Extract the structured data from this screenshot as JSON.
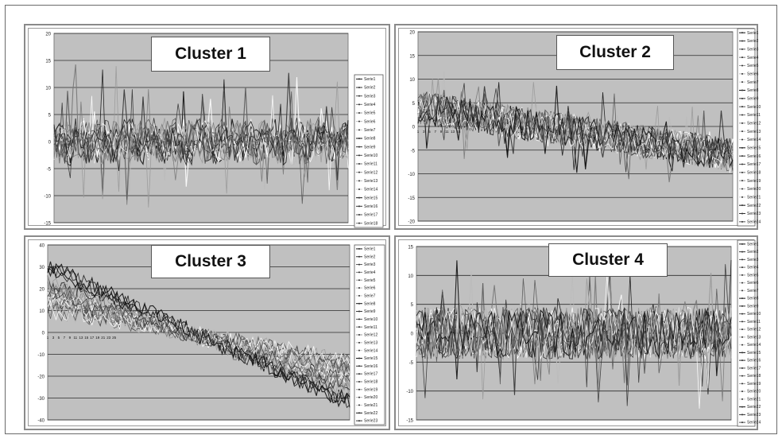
{
  "chart_data": [
    {
      "type": "line",
      "title": "Cluster 1",
      "ylim": [
        -15,
        20
      ],
      "yticks": [
        -15,
        -10,
        -5,
        0,
        5,
        10,
        15,
        20
      ],
      "grid": true,
      "legend_position": "right",
      "colors": [
        "#111111",
        "#333333",
        "#555555",
        "#777777",
        "#999999",
        "#bbbbbb",
        "#ffffff"
      ],
      "num_points": 110,
      "series": [
        {
          "name": "Serie1"
        },
        {
          "name": "Serie2"
        },
        {
          "name": "Serie3"
        },
        {
          "name": "Serie4"
        },
        {
          "name": "Serie5"
        },
        {
          "name": "Serie6"
        },
        {
          "name": "Serie7"
        },
        {
          "name": "Serie8"
        },
        {
          "name": "Serie9"
        },
        {
          "name": "Serie10"
        },
        {
          "name": "Serie11"
        },
        {
          "name": "Serie12"
        },
        {
          "name": "Serie13"
        },
        {
          "name": "Serie14"
        },
        {
          "name": "Serie15"
        },
        {
          "name": "Serie16"
        },
        {
          "name": "Serie17"
        },
        {
          "name": "Serie18"
        }
      ]
    },
    {
      "type": "line",
      "title": "Cluster 2",
      "ylim": [
        -20,
        20
      ],
      "yticks": [
        -20,
        -15,
        -10,
        -5,
        0,
        5,
        10,
        15,
        20
      ],
      "grid": true,
      "legend_position": "right",
      "colors": [
        "#111111",
        "#333333",
        "#555555",
        "#777777",
        "#999999",
        "#bbbbbb",
        "#ffffff"
      ],
      "num_points": 110,
      "x_ticks_visible": [
        "1",
        "3",
        "5",
        "7",
        "9",
        "11",
        "13",
        "15"
      ],
      "series": [
        {
          "name": "Serie1"
        },
        {
          "name": "Serie2"
        },
        {
          "name": "Serie3"
        },
        {
          "name": "Serie4"
        },
        {
          "name": "Serie5"
        },
        {
          "name": "Serie6"
        },
        {
          "name": "Serie7"
        },
        {
          "name": "Serie8"
        },
        {
          "name": "Serie9"
        },
        {
          "name": "Serie10"
        },
        {
          "name": "Serie11"
        },
        {
          "name": "Serie12"
        },
        {
          "name": "Serie13"
        },
        {
          "name": "Serie14"
        },
        {
          "name": "Serie15"
        },
        {
          "name": "Serie16"
        },
        {
          "name": "Serie17"
        },
        {
          "name": "Serie18"
        },
        {
          "name": "Serie19"
        },
        {
          "name": "Serie20"
        },
        {
          "name": "Serie21"
        },
        {
          "name": "Serie22"
        },
        {
          "name": "Serie23"
        },
        {
          "name": "Serie24"
        }
      ]
    },
    {
      "type": "line",
      "title": "Cluster 3",
      "ylim": [
        -40,
        40
      ],
      "yticks": [
        -40,
        -30,
        -20,
        -10,
        0,
        10,
        20,
        30,
        40
      ],
      "grid": true,
      "legend_position": "right",
      "colors": [
        "#111111",
        "#333333",
        "#555555",
        "#777777",
        "#999999",
        "#bbbbbb",
        "#ffffff"
      ],
      "num_points": 110,
      "x_ticks_visible": [
        "1",
        "3",
        "5",
        "7",
        "9",
        "11",
        "13",
        "15",
        "17",
        "19",
        "21",
        "23",
        "25"
      ],
      "series": [
        {
          "name": "Serie1"
        },
        {
          "name": "Serie2"
        },
        {
          "name": "Serie3"
        },
        {
          "name": "Serie4"
        },
        {
          "name": "Serie5"
        },
        {
          "name": "Serie6"
        },
        {
          "name": "Serie7"
        },
        {
          "name": "Serie8"
        },
        {
          "name": "Serie9"
        },
        {
          "name": "Serie10"
        },
        {
          "name": "Serie11"
        },
        {
          "name": "Serie12"
        },
        {
          "name": "Serie13"
        },
        {
          "name": "Serie14"
        },
        {
          "name": "Serie15"
        },
        {
          "name": "Serie16"
        },
        {
          "name": "Serie17"
        },
        {
          "name": "Serie18"
        },
        {
          "name": "Serie19"
        },
        {
          "name": "Serie20"
        },
        {
          "name": "Serie21"
        },
        {
          "name": "Serie22"
        },
        {
          "name": "Serie23"
        }
      ]
    },
    {
      "type": "line",
      "title": "Cluster 4",
      "ylim": [
        -15,
        15
      ],
      "yticks": [
        -15,
        -10,
        -5,
        0,
        5,
        10,
        15
      ],
      "grid": true,
      "legend_position": "right",
      "colors": [
        "#111111",
        "#333333",
        "#555555",
        "#777777",
        "#999999",
        "#bbbbbb",
        "#ffffff"
      ],
      "num_points": 110,
      "series": [
        {
          "name": "Serie1"
        },
        {
          "name": "Serie2"
        },
        {
          "name": "Serie3"
        },
        {
          "name": "Serie4"
        },
        {
          "name": "Serie5"
        },
        {
          "name": "Serie6"
        },
        {
          "name": "Serie7"
        },
        {
          "name": "Serie8"
        },
        {
          "name": "Serie9"
        },
        {
          "name": "Serie10"
        },
        {
          "name": "Serie11"
        },
        {
          "name": "Serie12"
        },
        {
          "name": "Serie13"
        },
        {
          "name": "Serie14"
        },
        {
          "name": "Serie15"
        },
        {
          "name": "Serie16"
        },
        {
          "name": "Serie17"
        },
        {
          "name": "Serie18"
        },
        {
          "name": "Serie19"
        },
        {
          "name": "Serie20"
        },
        {
          "name": "Serie21"
        },
        {
          "name": "Serie22"
        },
        {
          "name": "Serie23"
        },
        {
          "name": "Serie24"
        }
      ]
    }
  ]
}
